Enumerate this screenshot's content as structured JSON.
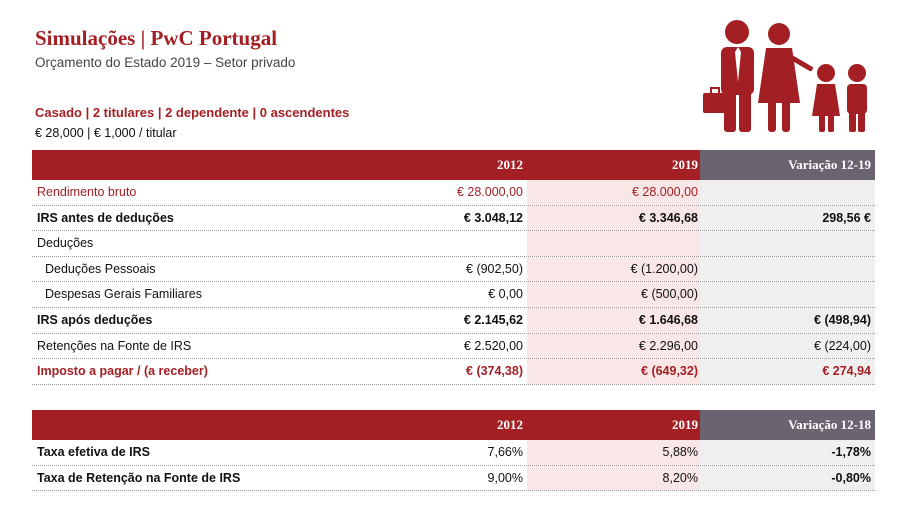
{
  "header": {
    "title": "Simulações | PwC Portugal",
    "subtitle": "Orçamento do Estado 2019 – Setor privado"
  },
  "profile": {
    "household": "Casado | 2 titulares | 2 dependente | 0 ascendentes",
    "income": "€ 28,000 | € 1,000 / titular"
  },
  "tables": [
    {
      "columns": [
        "2012",
        "2019",
        "Variação 12-19"
      ],
      "rows": [
        {
          "label": "Rendimento bruto",
          "values": [
            "€ 28.000,00",
            "€ 28.000,00"
          ]
        },
        {
          "label": "IRS antes de deduções",
          "values": [
            "€ 3.048,12",
            "€ 3.346,68",
            "298,56 €"
          ]
        },
        {
          "label": "Deduções"
        },
        {
          "label": "Deduções Pessoais",
          "values": [
            "€ (902,50)",
            "€ (1.200,00)"
          ]
        },
        {
          "label": "Despesas Gerais Familiares",
          "values": [
            "€ 0,00",
            "€ (500,00)"
          ]
        },
        {
          "label": "IRS após deduções",
          "values": [
            "€ 2.145,62",
            "€ 1.646,68",
            "€ (498,94)"
          ]
        },
        {
          "label": "Retenções na Fonte de IRS",
          "values": [
            "€ 2.520,00",
            "€ 2.296,00",
            "€ (224,00)"
          ]
        },
        {
          "label": "Imposto a pagar / (a receber)",
          "values": [
            "€ (374,38)",
            "€ (649,32)",
            "€ 274,94"
          ]
        }
      ]
    },
    {
      "columns": [
        "2012",
        "2019",
        "Variação 12-18"
      ],
      "rows": [
        {
          "label": "Taxa efetiva de IRS",
          "values": [
            "7,66%",
            "5,88%",
            "-1,78%"
          ]
        },
        {
          "label": "Taxa de Retenção na Fonte de IRS",
          "values": [
            "9,00%",
            "8,20%",
            "-0,80%"
          ]
        }
      ]
    }
  ]
}
